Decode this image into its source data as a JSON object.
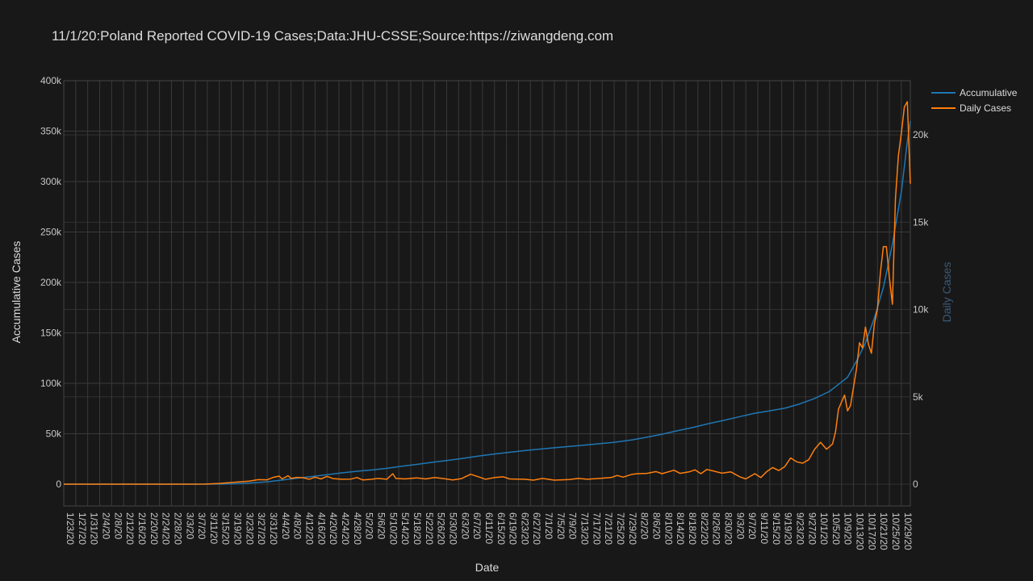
{
  "chart_data": {
    "type": "line",
    "title": "11/1/20:Poland Reported COVID-19 Cases;Data:JHU-CSSE;Source:https://ziwangdeng.com",
    "xlabel": "Date",
    "ylabel": "Accumulative Cases",
    "y2label": "Daily Cases",
    "start_date": "2020-01-23",
    "end_date": "2020-11-01",
    "x_tick_labels": [
      "1/23/20",
      "1/27/20",
      "1/31/20",
      "2/4/20",
      "2/8/20",
      "2/12/20",
      "2/16/20",
      "2/20/20",
      "2/24/20",
      "2/28/20",
      "3/3/20",
      "3/7/20",
      "3/11/20",
      "3/15/20",
      "3/19/20",
      "3/23/20",
      "3/27/20",
      "3/31/20",
      "4/4/20",
      "4/8/20",
      "4/12/20",
      "4/16/20",
      "4/20/20",
      "4/24/20",
      "4/28/20",
      "5/2/20",
      "5/6/20",
      "5/10/20",
      "5/14/20",
      "5/18/20",
      "5/22/20",
      "5/26/20",
      "5/30/20",
      "6/3/20",
      "6/7/20",
      "6/11/20",
      "6/15/20",
      "6/19/20",
      "6/23/20",
      "6/27/20",
      "7/1/20",
      "7/5/20",
      "7/9/20",
      "7/13/20",
      "7/17/20",
      "7/21/20",
      "7/25/20",
      "7/29/20",
      "8/2/20",
      "8/6/20",
      "8/10/20",
      "8/14/20",
      "8/18/20",
      "8/22/20",
      "8/26/20",
      "8/30/20",
      "9/3/20",
      "9/7/20",
      "9/11/20",
      "9/15/20",
      "9/19/20",
      "9/23/20",
      "9/27/20",
      "10/1/20",
      "10/5/20",
      "10/9/20",
      "10/13/20",
      "10/17/20",
      "10/21/20",
      "10/25/20",
      "10/29/20"
    ],
    "y_ticks": [
      0,
      50000,
      100000,
      150000,
      200000,
      250000,
      300000,
      350000,
      400000
    ],
    "y_tick_labels": [
      "0",
      "50k",
      "100k",
      "150k",
      "200k",
      "250k",
      "300k",
      "350k",
      "400k"
    ],
    "y_range": [
      0,
      400000
    ],
    "y2_ticks": [
      0,
      5000,
      10000,
      15000,
      20000
    ],
    "y2_tick_labels": [
      "0",
      "5k",
      "10k",
      "15k",
      "20k"
    ],
    "y2_range": [
      0,
      23100
    ],
    "grid": true,
    "legend_position": "top-right",
    "series": [
      {
        "name": "Accumulative",
        "color": "#1f77b4",
        "axis": "y",
        "points": [
          [
            "2020-01-23",
            0
          ],
          [
            "2020-03-04",
            0
          ],
          [
            "2020-03-10",
            20
          ],
          [
            "2020-03-15",
            120
          ],
          [
            "2020-03-20",
            420
          ],
          [
            "2020-03-25",
            1100
          ],
          [
            "2020-03-31",
            2300
          ],
          [
            "2020-04-05",
            4100
          ],
          [
            "2020-04-10",
            5900
          ],
          [
            "2020-04-15",
            7600
          ],
          [
            "2020-04-20",
            9400
          ],
          [
            "2020-04-25",
            11200
          ],
          [
            "2020-04-30",
            12800
          ],
          [
            "2020-05-05",
            14100
          ],
          [
            "2020-05-10",
            15700
          ],
          [
            "2020-05-15",
            17800
          ],
          [
            "2020-05-20",
            19600
          ],
          [
            "2020-05-25",
            21600
          ],
          [
            "2020-05-31",
            23800
          ],
          [
            "2020-06-05",
            25800
          ],
          [
            "2020-06-10",
            28000
          ],
          [
            "2020-06-15",
            29900
          ],
          [
            "2020-06-20",
            31600
          ],
          [
            "2020-06-25",
            33300
          ],
          [
            "2020-06-30",
            34700
          ],
          [
            "2020-07-05",
            36100
          ],
          [
            "2020-07-10",
            37400
          ],
          [
            "2020-07-15",
            38700
          ],
          [
            "2020-07-20",
            40100
          ],
          [
            "2020-07-25",
            41500
          ],
          [
            "2020-07-31",
            43900
          ],
          [
            "2020-08-05",
            46600
          ],
          [
            "2020-08-10",
            49500
          ],
          [
            "2020-08-15",
            52900
          ],
          [
            "2020-08-20",
            56000
          ],
          [
            "2020-08-25",
            59600
          ],
          [
            "2020-08-31",
            63500
          ],
          [
            "2020-09-05",
            67000
          ],
          [
            "2020-09-10",
            70300
          ],
          [
            "2020-09-15",
            72700
          ],
          [
            "2020-09-20",
            75300
          ],
          [
            "2020-09-25",
            79500
          ],
          [
            "2020-09-30",
            85000
          ],
          [
            "2020-10-05",
            92000
          ],
          [
            "2020-10-08",
            99000
          ],
          [
            "2020-10-11",
            106000
          ],
          [
            "2020-10-14",
            122000
          ],
          [
            "2020-10-17",
            140000
          ],
          [
            "2020-10-20",
            165000
          ],
          [
            "2020-10-23",
            195000
          ],
          [
            "2020-10-26",
            238000
          ],
          [
            "2020-10-29",
            290000
          ],
          [
            "2020-10-31",
            340000
          ],
          [
            "2020-11-01",
            360000
          ]
        ]
      },
      {
        "name": "Daily Cases",
        "color": "#ff7f0e",
        "axis": "y2",
        "points": [
          [
            "2020-01-23",
            0
          ],
          [
            "2020-03-04",
            0
          ],
          [
            "2020-03-10",
            5
          ],
          [
            "2020-03-15",
            40
          ],
          [
            "2020-03-20",
            110
          ],
          [
            "2020-03-25",
            170
          ],
          [
            "2020-03-28",
            260
          ],
          [
            "2020-03-31",
            250
          ],
          [
            "2020-04-02",
            390
          ],
          [
            "2020-04-04",
            460
          ],
          [
            "2020-04-05",
            300
          ],
          [
            "2020-04-07",
            480
          ],
          [
            "2020-04-08",
            330
          ],
          [
            "2020-04-10",
            390
          ],
          [
            "2020-04-12",
            370
          ],
          [
            "2020-04-14",
            280
          ],
          [
            "2020-04-16",
            400
          ],
          [
            "2020-04-18",
            300
          ],
          [
            "2020-04-20",
            450
          ],
          [
            "2020-04-22",
            320
          ],
          [
            "2020-04-25",
            280
          ],
          [
            "2020-04-28",
            290
          ],
          [
            "2020-04-30",
            380
          ],
          [
            "2020-05-02",
            240
          ],
          [
            "2020-05-05",
            280
          ],
          [
            "2020-05-07",
            330
          ],
          [
            "2020-05-10",
            280
          ],
          [
            "2020-05-12",
            600
          ],
          [
            "2020-05-13",
            330
          ],
          [
            "2020-05-16",
            300
          ],
          [
            "2020-05-20",
            360
          ],
          [
            "2020-05-23",
            300
          ],
          [
            "2020-05-26",
            380
          ],
          [
            "2020-05-29",
            320
          ],
          [
            "2020-06-01",
            240
          ],
          [
            "2020-06-04",
            320
          ],
          [
            "2020-06-07",
            570
          ],
          [
            "2020-06-10",
            400
          ],
          [
            "2020-06-12",
            280
          ],
          [
            "2020-06-15",
            380
          ],
          [
            "2020-06-18",
            420
          ],
          [
            "2020-06-20",
            300
          ],
          [
            "2020-06-25",
            280
          ],
          [
            "2020-06-28",
            230
          ],
          [
            "2020-07-01",
            330
          ],
          [
            "2020-07-05",
            230
          ],
          [
            "2020-07-10",
            270
          ],
          [
            "2020-07-13",
            330
          ],
          [
            "2020-07-16",
            280
          ],
          [
            "2020-07-20",
            330
          ],
          [
            "2020-07-24",
            380
          ],
          [
            "2020-07-26",
            500
          ],
          [
            "2020-07-28",
            400
          ],
          [
            "2020-07-31",
            570
          ],
          [
            "2020-08-02",
            600
          ],
          [
            "2020-08-05",
            620
          ],
          [
            "2020-08-08",
            720
          ],
          [
            "2020-08-10",
            600
          ],
          [
            "2020-08-14",
            800
          ],
          [
            "2020-08-16",
            620
          ],
          [
            "2020-08-19",
            700
          ],
          [
            "2020-08-21",
            820
          ],
          [
            "2020-08-23",
            600
          ],
          [
            "2020-08-25",
            840
          ],
          [
            "2020-08-27",
            760
          ],
          [
            "2020-08-30",
            630
          ],
          [
            "2020-09-02",
            700
          ],
          [
            "2020-09-05",
            420
          ],
          [
            "2020-09-07",
            300
          ],
          [
            "2020-09-10",
            600
          ],
          [
            "2020-09-12",
            380
          ],
          [
            "2020-09-14",
            720
          ],
          [
            "2020-09-16",
            950
          ],
          [
            "2020-09-18",
            780
          ],
          [
            "2020-09-20",
            1000
          ],
          [
            "2020-09-22",
            1500
          ],
          [
            "2020-09-24",
            1280
          ],
          [
            "2020-09-26",
            1200
          ],
          [
            "2020-09-28",
            1400
          ],
          [
            "2020-09-30",
            2000
          ],
          [
            "2020-10-02",
            2400
          ],
          [
            "2020-10-04",
            2000
          ],
          [
            "2020-10-06",
            2300
          ],
          [
            "2020-10-07",
            3000
          ],
          [
            "2020-10-08",
            4300
          ],
          [
            "2020-10-10",
            5100
          ],
          [
            "2020-10-11",
            4200
          ],
          [
            "2020-10-12",
            4500
          ],
          [
            "2020-10-14",
            6600
          ],
          [
            "2020-10-15",
            8100
          ],
          [
            "2020-10-16",
            7800
          ],
          [
            "2020-10-17",
            9000
          ],
          [
            "2020-10-18",
            8000
          ],
          [
            "2020-10-19",
            7500
          ],
          [
            "2020-10-20",
            9200
          ],
          [
            "2020-10-21",
            10000
          ],
          [
            "2020-10-22",
            12100
          ],
          [
            "2020-10-23",
            13600
          ],
          [
            "2020-10-24",
            13600
          ],
          [
            "2020-10-25",
            11800
          ],
          [
            "2020-10-26",
            10300
          ],
          [
            "2020-10-27",
            16300
          ],
          [
            "2020-10-28",
            18800
          ],
          [
            "2020-10-29",
            20100
          ],
          [
            "2020-10-30",
            21600
          ],
          [
            "2020-10-31",
            21900
          ],
          [
            "2020-11-01",
            17200
          ]
        ]
      }
    ]
  }
}
